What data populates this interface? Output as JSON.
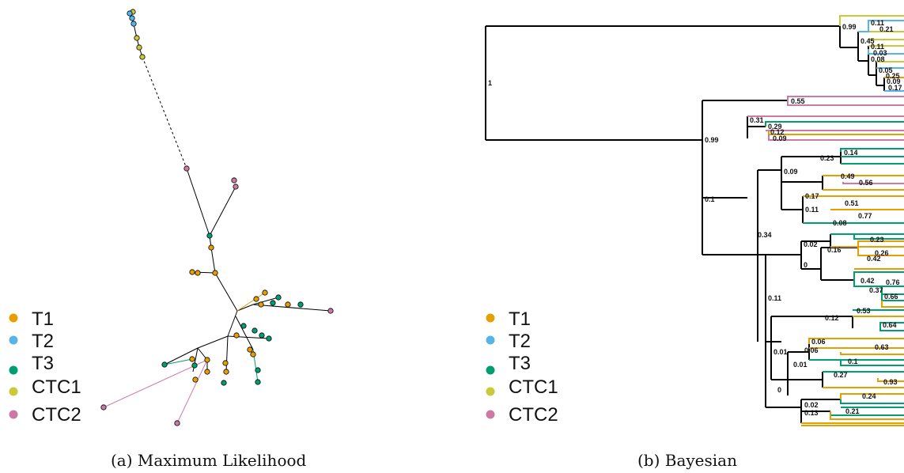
{
  "colors": {
    "T1": "#E69F00",
    "T2": "#56B4E9",
    "T3": "#009E73",
    "CTC1": "#C9C93A",
    "CTC2": "#CC79A7",
    "branch": "#000000"
  },
  "legend_labels": [
    "T1",
    "T2",
    "T3",
    "CTC1",
    "CTC2"
  ],
  "captions": {
    "ml": "(a) Maximum Likelihood",
    "bayes": "(b) Bayesian"
  },
  "bayes_posteriors": {
    "root": "1",
    "n099a": "0.99",
    "n045": "0.45",
    "n011a": "0.11",
    "n021": "0.21",
    "n011b": "0.11",
    "n003": "0.03",
    "n008a": "0.08",
    "n005": "0.05",
    "n025": "0.25",
    "n009a": "0.09",
    "n017a": "0.17",
    "n099b": "0.99",
    "n055": "0.55",
    "n031": "0.31",
    "n029": "0.29",
    "n012": "0.12",
    "n009b": "0.09",
    "n01a": "0.1",
    "n014": "0.14",
    "n023a": "0.23",
    "n009c": "0.09",
    "n049": "0.49",
    "n056": "0.56",
    "n011c": "0.11",
    "n017b": "0.17",
    "n051": "0.51",
    "n034": "0.34",
    "n077": "0.77",
    "n008b": "0.08",
    "n023b": "0.23",
    "n002a": "0.02",
    "n016": "0.16",
    "n026": "0.26",
    "n042a": "0.42",
    "n0": "0",
    "n042b": "0.42",
    "n076": "0.76",
    "n037": "0.37",
    "n066": "0.66",
    "n011d": "0.11",
    "n053": "0.53",
    "n012b": "0.12",
    "n064": "0.64",
    "n006a": "0.06",
    "n006b": "0.06",
    "n063": "0.63",
    "n001a": "0.01",
    "n001b": "0.01",
    "n01b": "0.1",
    "n027": "0.27",
    "n093": "0.93",
    "n0b": "0",
    "n024": "0.24",
    "n002b": "0.02",
    "n021b": "0.21",
    "n013": "0.13"
  }
}
